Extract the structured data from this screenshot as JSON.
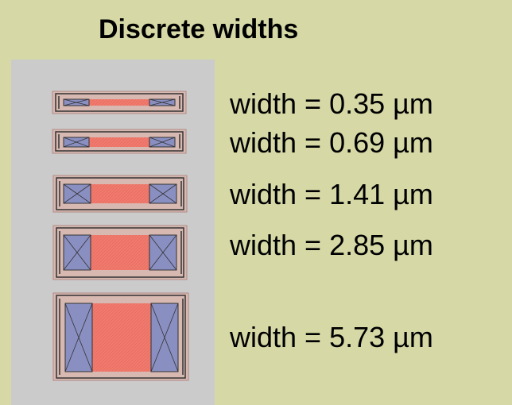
{
  "title": "Discrete widths",
  "colors": {
    "background": "#d6d9a6",
    "panel": "#cbcbcb",
    "channel": "#f07a6d",
    "contact": "#8a8fc2",
    "outline": "#333333",
    "well": "#e8a79f"
  },
  "devices": [
    {
      "label": "width = 0.35 µm",
      "width_um": 0.35
    },
    {
      "label": "width = 0.69 µm",
      "width_um": 0.69
    },
    {
      "label": "width = 1.41 µm",
      "width_um": 1.41
    },
    {
      "label": "width = 2.85 µm",
      "width_um": 2.85
    },
    {
      "label": "width = 5.73 µm",
      "width_um": 5.73
    }
  ]
}
